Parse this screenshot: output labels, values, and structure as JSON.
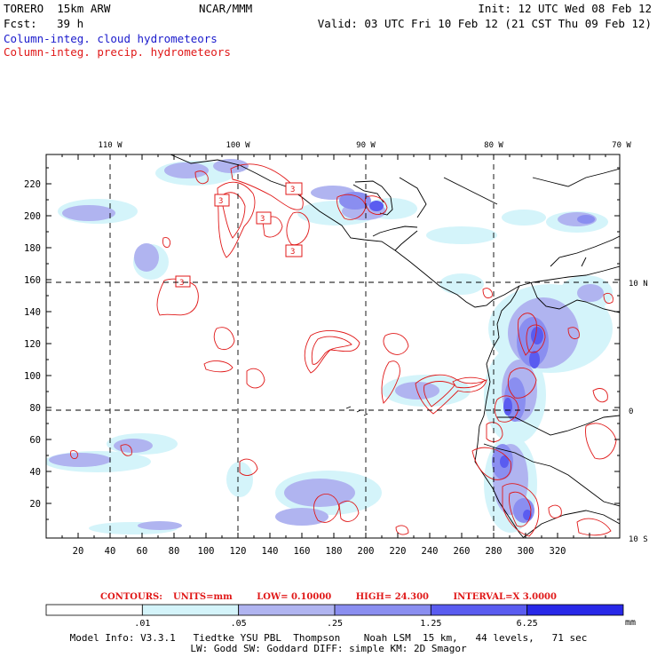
{
  "header": {
    "model": "TORERO  15km ARW",
    "org": "NCAR/MMM",
    "init": "Init: 12 UTC Wed 08 Feb 12",
    "fcst_label": "Fcst:",
    "fcst_value": "39 h",
    "valid": "Valid: 03 UTC Fri 10 Feb 12 (21 CST Thu 09 Feb 12)",
    "field_cloud": "Column-integ. cloud hydrometeors",
    "field_precip": "Column-integ. precip. hydrometeors"
  },
  "colors": {
    "cloud_text": "#1a1acc",
    "precip_text": "#e01818",
    "contour": "#e01818",
    "coast": "#000000",
    "shade_1": "#d4f4fa",
    "shade_2": "#b0b4f0",
    "shade_3": "#8a8ef0",
    "shade_4": "#5a5cf0",
    "shade_5": "#2828e8"
  },
  "map": {
    "top_lon_labels": [
      "110 W",
      "100 W",
      "90 W",
      "80 W",
      "70 W"
    ],
    "right_lat_labels": [
      "10 N",
      "0",
      "10 S"
    ],
    "x_ticks": [
      "20",
      "40",
      "60",
      "80",
      "100",
      "120",
      "140",
      "160",
      "180",
      "200",
      "220",
      "240",
      "260",
      "280",
      "300",
      "320"
    ],
    "y_ticks": [
      "220",
      "200",
      "180",
      "160",
      "140",
      "120",
      "100",
      "80",
      "60",
      "40",
      "20"
    ],
    "contour_labels": [
      "3",
      "3",
      "3",
      "3",
      "3"
    ]
  },
  "contour_info": {
    "contours": "CONTOURS:",
    "units": "UNITS=mm",
    "low": "LOW= 0.10000",
    "high": "HIGH=  24.300",
    "interval": "INTERVAL=X  3.0000"
  },
  "colorbar": {
    "labels": [
      ".01",
      ".05",
      ".25",
      "1.25",
      "6.25"
    ],
    "unit": "mm",
    "colors": [
      "#ffffff",
      "#d4f4fa",
      "#b0b4f0",
      "#8a8ef0",
      "#5a5cf0",
      "#2828e8"
    ]
  },
  "model_info": {
    "line1": "Model Info: V3.3.1   Tiedtke YSU PBL  Thompson    Noah LSM  15 km,   44 levels,   71 sec",
    "line2": "LW: Godd SW: Goddard DIFF: simple KM: 2D Smagor"
  }
}
